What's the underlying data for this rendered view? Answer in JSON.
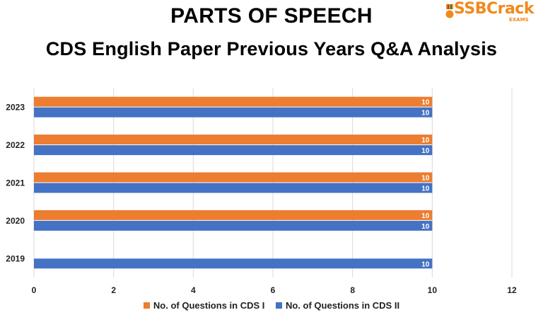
{
  "header": {
    "title": "PARTS OF SPEECH",
    "subtitle": "CDS English Paper Previous Years Q&A Analysis",
    "logo_text": "SSBCrack",
    "logo_sub": "EXAMS"
  },
  "colors": {
    "cds1": "#ED7D31",
    "cds2": "#4472C4",
    "grid": "#D9D9D9",
    "logo": "#F08A1C"
  },
  "legend": {
    "cds1_label": "No. of Questions in CDS I",
    "cds2_label": "No. of Questions in CDS II"
  },
  "chart_data": {
    "type": "bar",
    "orientation": "horizontal",
    "categories": [
      "2023",
      "2022",
      "2021",
      "2020",
      "2019"
    ],
    "series": [
      {
        "name": "No. of Questions in CDS I",
        "values": [
          10,
          10,
          10,
          10,
          null
        ]
      },
      {
        "name": "No. of Questions in CDS II",
        "values": [
          10,
          10,
          10,
          10,
          10
        ]
      }
    ],
    "xlim": [
      0,
      12
    ],
    "xticks": [
      0,
      2,
      4,
      6,
      8,
      10,
      12
    ],
    "grid": "vertical",
    "legend_position": "bottom",
    "data_labels": true
  }
}
